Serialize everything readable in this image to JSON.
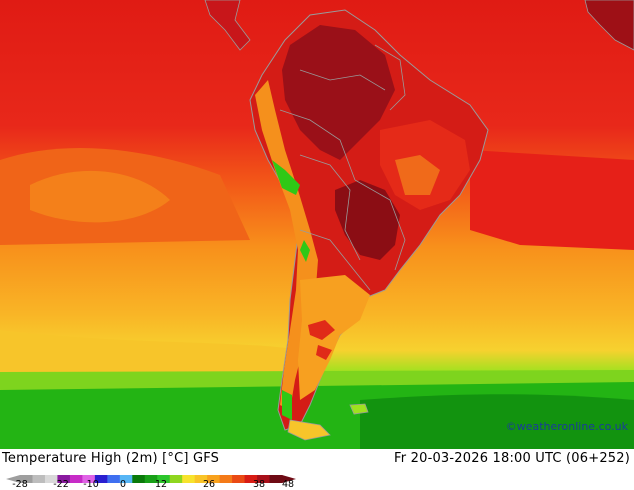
{
  "map": {
    "title": "Temperature High (2m) [°C] GFS",
    "datetime": "Fr 20-03-2026 18:00 UTC (06+252)",
    "credit": "©weatheronline.co.uk",
    "region": "South America",
    "colors": {
      "very_hot": "#8b0d14",
      "hot": "#b81416",
      "red": "#e01b14",
      "orange_red": "#f25518",
      "orange": "#f8901b",
      "light_orange": "#f9b526",
      "yellow": "#f7d12f",
      "lime": "#9ee21f",
      "green": "#2fc816",
      "dark_green": "#139a12",
      "border": "#9a9a9a"
    }
  },
  "legend": {
    "tick_labels": [
      "-28",
      "-22",
      "-10",
      "0",
      "12",
      "26",
      "38",
      "48"
    ],
    "colors": [
      "#9e9e9e",
      "#bdbdbd",
      "#d9d9d9",
      "#8a1aa0",
      "#c72cc7",
      "#e063e6",
      "#2a1fd0",
      "#3f6ff0",
      "#56b5f5",
      "#0a7a0a",
      "#18a018",
      "#2cc62c",
      "#8fd61f",
      "#f7e32d",
      "#f9c427",
      "#f8a21d",
      "#f47a18",
      "#ea4a14",
      "#d81c14",
      "#a8101a",
      "#6e0a14"
    ]
  }
}
